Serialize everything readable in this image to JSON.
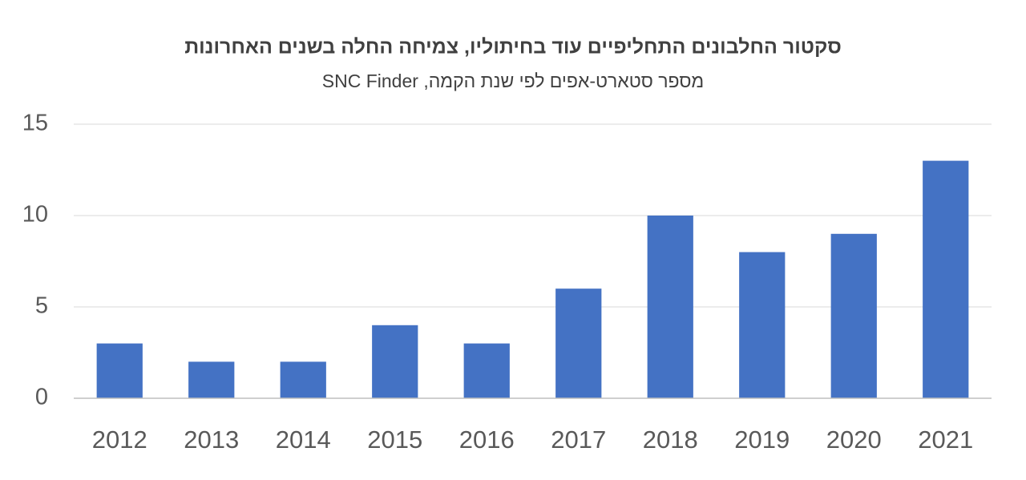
{
  "chart_data": {
    "type": "bar",
    "title": "סקטור החלבונים התחליפיים עוד בחיתוליו, צמיחה החלה בשנים האחרונות",
    "subtitle": "מספר סטארט-אפים לפי שנת הקמה, SNC Finder",
    "categories": [
      "2012",
      "2013",
      "2014",
      "2015",
      "2016",
      "2017",
      "2018",
      "2019",
      "2020",
      "2021"
    ],
    "values": [
      3,
      2,
      2,
      4,
      3,
      6,
      10,
      8,
      9,
      13
    ],
    "color": "#4472c4",
    "ylim": [
      0,
      15
    ],
    "yticks": [
      0,
      5,
      10,
      15
    ],
    "grid": true
  }
}
